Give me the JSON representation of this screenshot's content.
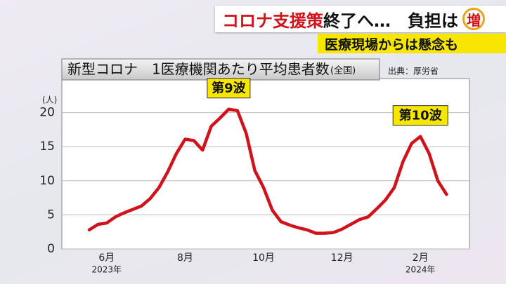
{
  "banner": {
    "highlight": "コロナ支援策",
    "text": "終了へ…　負担は",
    "icon": "増",
    "subtitle": "医療現場からは懸念も"
  },
  "chart_data": {
    "type": "line",
    "title": "新型コロナ　1医療機関あたり平均患者数",
    "subtitle": "(全国)",
    "source": "出典：厚労省",
    "y_label": "(人)",
    "categories": [
      null,
      null,
      "6月",
      null,
      null,
      null,
      null,
      null,
      null,
      null,
      null,
      "8月",
      null,
      null,
      null,
      null,
      null,
      null,
      null,
      null,
      "10月",
      null,
      null,
      null,
      null,
      null,
      null,
      null,
      null,
      "12月",
      null,
      null,
      null,
      null,
      null,
      null,
      null,
      null,
      "2月",
      null,
      null,
      null
    ],
    "category_sublabels": [
      null,
      null,
      "2023年",
      null,
      null,
      null,
      null,
      null,
      null,
      null,
      null,
      null,
      null,
      null,
      null,
      null,
      null,
      null,
      null,
      null,
      null,
      null,
      null,
      null,
      null,
      null,
      null,
      null,
      null,
      null,
      null,
      null,
      null,
      null,
      null,
      null,
      null,
      null,
      "2024年",
      null,
      null,
      null
    ],
    "series": [
      {
        "name": "平均患者数",
        "color": "#d0121b",
        "values": [
          2.8,
          3.6,
          3.8,
          4.7,
          5.3,
          5.8,
          6.3,
          7.4,
          9.0,
          11.3,
          14.0,
          16.1,
          15.9,
          14.5,
          18.0,
          19.2,
          20.5,
          20.3,
          17.0,
          11.5,
          9.0,
          5.7,
          4.0,
          3.5,
          3.1,
          2.8,
          2.3,
          2.3,
          2.4,
          2.9,
          3.6,
          4.3,
          4.7,
          5.9,
          7.2,
          9.0,
          12.8,
          15.5,
          16.5,
          14.0,
          10.0,
          8.0
        ]
      }
    ],
    "ylim": [
      0,
      25
    ],
    "yticks": [
      0,
      5,
      10,
      15,
      20
    ],
    "grid": true,
    "annotations": [
      {
        "text": "第9波",
        "index": 16
      },
      {
        "text": "第10波",
        "index": 38
      }
    ]
  }
}
